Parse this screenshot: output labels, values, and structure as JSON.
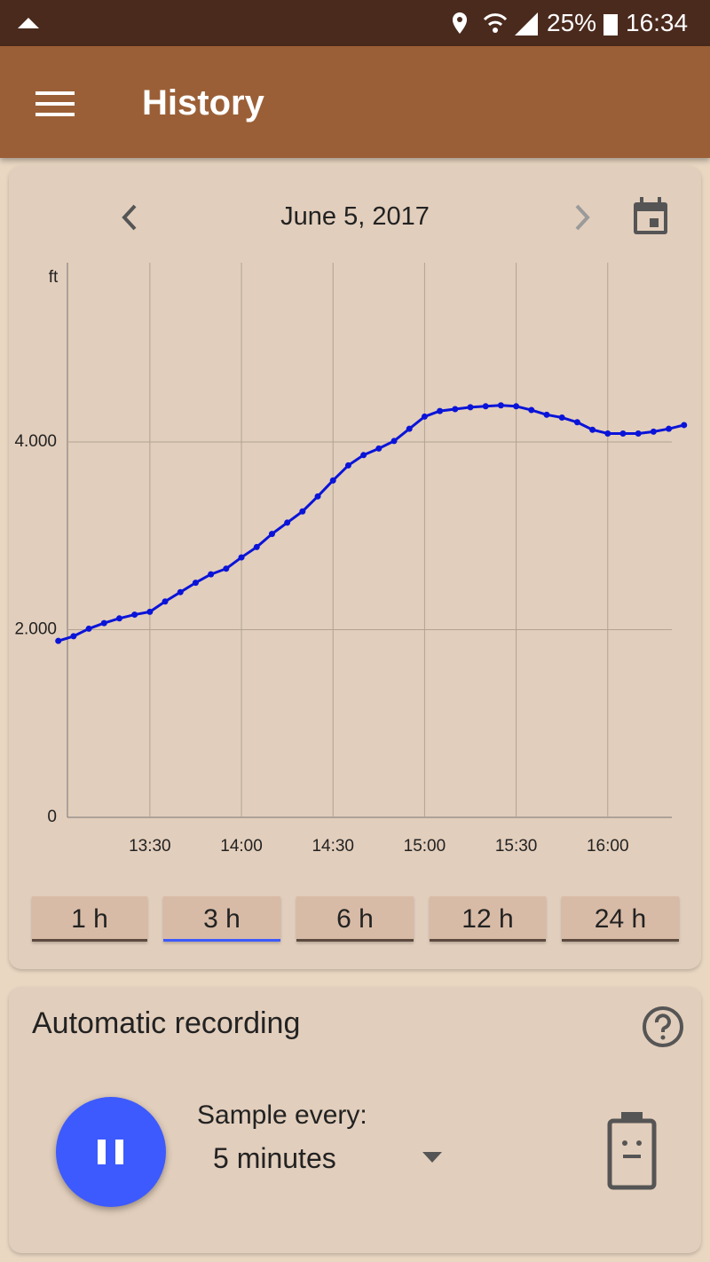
{
  "status_bar": {
    "battery": "25%",
    "time": "16:34"
  },
  "app_bar": {
    "title": "History"
  },
  "history_card": {
    "date": "June 5, 2017",
    "chart_data": {
      "type": "line",
      "y_label": "ft",
      "color": "#0a14d8",
      "x": [
        "13:00",
        "13:05",
        "13:10",
        "13:15",
        "13:20",
        "13:25",
        "13:30",
        "13:35",
        "13:40",
        "13:45",
        "13:50",
        "13:55",
        "14:00",
        "14:05",
        "14:10",
        "14:15",
        "14:20",
        "14:25",
        "14:30",
        "14:35",
        "14:40",
        "14:45",
        "14:50",
        "14:55",
        "15:00",
        "15:05",
        "15:10",
        "15:15",
        "15:20",
        "15:25",
        "15:30",
        "15:35",
        "15:40",
        "15:45",
        "15:50",
        "15:55",
        "16:00",
        "16:05",
        "16:10",
        "16:15",
        "16:20",
        "16:25"
      ],
      "values": [
        1880,
        1930,
        2010,
        2070,
        2120,
        2160,
        2190,
        2300,
        2400,
        2500,
        2590,
        2650,
        2770,
        2880,
        3020,
        3140,
        3260,
        3420,
        3590,
        3750,
        3860,
        3930,
        4010,
        4140,
        4270,
        4330,
        4350,
        4370,
        4380,
        4390,
        4380,
        4340,
        4290,
        4260,
        4210,
        4130,
        4090,
        4090,
        4090,
        4110,
        4140,
        4180
      ],
      "xlim": [
        "13:03",
        "16:21"
      ],
      "xticks": [
        "13:30",
        "14:00",
        "14:30",
        "15:00",
        "15:30",
        "16:00"
      ],
      "ylim": [
        0,
        5910
      ],
      "yticks": [
        0,
        {
          "value": 2000,
          "label": "2.000"
        },
        {
          "value": 4000,
          "label": "4.000"
        }
      ],
      "grid": true
    },
    "range_buttons": [
      "1 h",
      "3 h",
      "6 h",
      "12 h",
      "24 h"
    ],
    "selected_range": 1
  },
  "recording_card": {
    "title": "Automatic recording",
    "sample_label": "Sample every:",
    "sample_value": "5 minutes"
  }
}
